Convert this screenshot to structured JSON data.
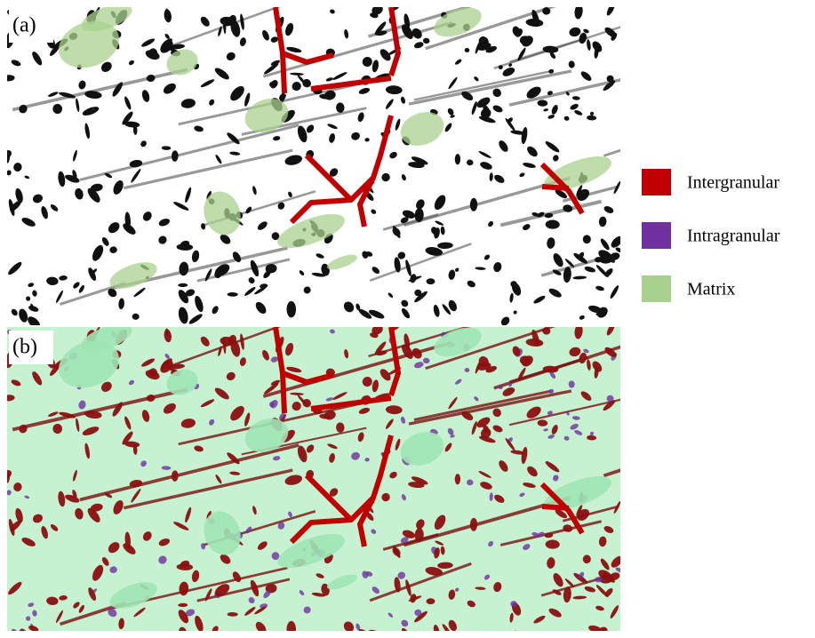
{
  "panels": [
    {
      "label": "(a)"
    },
    {
      "label": "(b)"
    }
  ],
  "legend": [
    {
      "name": "Intergranular",
      "color": "#c00000"
    },
    {
      "name": "Intragranular",
      "color": "#7030a0"
    },
    {
      "name": "Matrix",
      "color": "#a9d18e"
    }
  ]
}
